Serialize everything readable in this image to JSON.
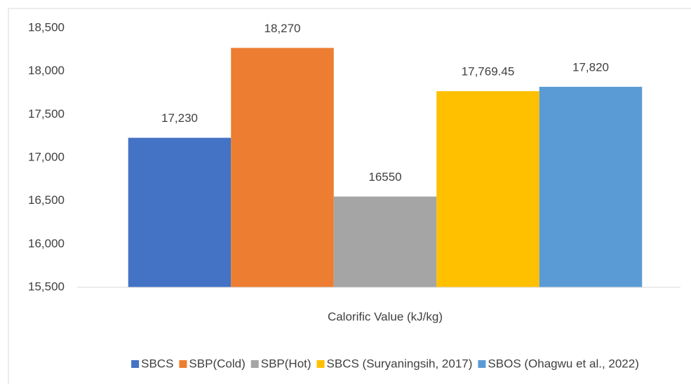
{
  "chart_data": {
    "type": "bar",
    "categories": [
      "Calorific Value (kJ/kg)"
    ],
    "series": [
      {
        "name": "SBCS",
        "color": "#4472c4",
        "values": [
          17230
        ],
        "value_labels": [
          "17,230"
        ]
      },
      {
        "name": "SBP(Cold)",
        "color": "#ed7d31",
        "values": [
          18270
        ],
        "value_labels": [
          "18,270"
        ]
      },
      {
        "name": "SBP(Hot)",
        "color": "#a5a5a5",
        "values": [
          16550
        ],
        "value_labels": [
          "16550"
        ]
      },
      {
        "name": "SBCS (Suryaningsih, 2017)",
        "color": "#ffc000",
        "values": [
          17769.45
        ],
        "value_labels": [
          "17,769.45"
        ]
      },
      {
        "name": "SBOS (Ohagwu et al., 2022)",
        "color": "#5b9bd5",
        "values": [
          17820
        ],
        "value_labels": [
          "17,820"
        ]
      }
    ],
    "ylim": [
      15500,
      18500
    ],
    "yticks": [
      {
        "value": 15500,
        "label": "15,500"
      },
      {
        "value": 16000,
        "label": "16,000"
      },
      {
        "value": 16500,
        "label": "16,500"
      },
      {
        "value": 17000,
        "label": "17,000"
      },
      {
        "value": 17500,
        "label": "17,500"
      },
      {
        "value": 18000,
        "label": "18,000"
      },
      {
        "value": 18500,
        "label": "18,500"
      }
    ],
    "grid": false,
    "legend": "bottom"
  }
}
